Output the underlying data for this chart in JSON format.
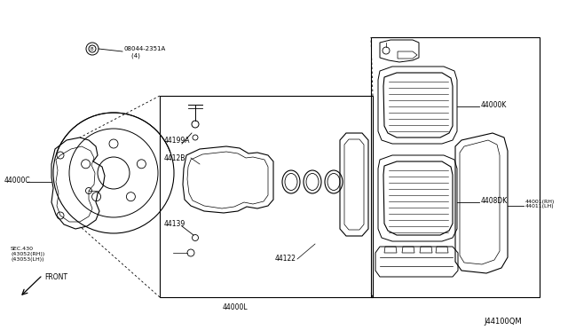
{
  "background_color": "#ffffff",
  "line_color": "#000000",
  "text_color": "#000000",
  "diagram_id": "J44100QM",
  "labels": {
    "bolt": "08044-2351A\n    (4)",
    "sec": "SEC.430\n(43052(RH))\n(43053(LH))",
    "front": "FRONT",
    "part_44000C": "44000C",
    "part_44199A": "44199A",
    "part_4412B": "4412B",
    "part_44139": "44139",
    "part_44000L": "44000L",
    "part_44122": "44122",
    "part_44000K": "44000K",
    "part_4408DK": "4408DK",
    "part_44001RH": "44001(RH)\n44011(LH)"
  },
  "fs": 5.5
}
